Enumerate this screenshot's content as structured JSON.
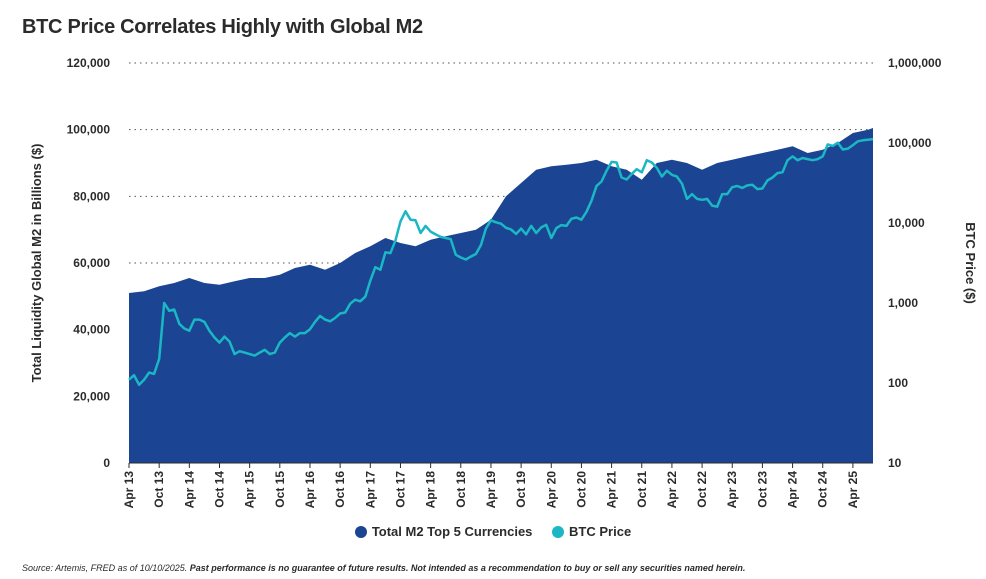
{
  "title": "BTC Price Correlates Highly with Global M2",
  "source": {
    "prefix": "Source: Artemis, FRED as of 10/10/2025.",
    "disclaimer": "Past performance is no guarantee of future results. Not intended as a recommendation to buy or sell any securities named herein."
  },
  "colors": {
    "m2": "#1b4592",
    "btc": "#1bb7c4",
    "grid": "#555555"
  },
  "chart_data": {
    "type": "area",
    "left_axis": {
      "label": "Total Liquidity Global M2 in Billions ($)",
      "range": [
        0,
        120000
      ],
      "ticks": [
        "0",
        "20,000",
        "40,000",
        "60,000",
        "80,000",
        "100,000",
        "120,000"
      ],
      "tick_values": [
        0,
        20000,
        40000,
        60000,
        80000,
        100000,
        120000
      ]
    },
    "right_axis": {
      "label": "BTC Price ($)",
      "scale": "log",
      "range": [
        10,
        1000000
      ],
      "ticks": [
        "10",
        "100",
        "1,000",
        "10,000",
        "100,000",
        "1,000,000"
      ],
      "tick_values": [
        10,
        100,
        1000,
        10000,
        100000,
        1000000
      ]
    },
    "x_ticks": [
      "Apr 13",
      "Oct 13",
      "Apr 14",
      "Oct 14",
      "Apr 15",
      "Oct 15",
      "Apr 16",
      "Oct 16",
      "Apr 17",
      "Oct 17",
      "Apr 18",
      "Oct 18",
      "Apr 19",
      "Oct 19",
      "Apr 20",
      "Oct 20",
      "Apr 21",
      "Oct 21",
      "Apr 22",
      "Oct 22",
      "Apr 23",
      "Oct 23",
      "Apr 24",
      "Oct 24",
      "Apr 25"
    ],
    "legend_position": "bottom",
    "grid": "horizontal dotted",
    "series": [
      {
        "name": "Total M2 Top 5 Currencies",
        "kind": "area",
        "axis": "left",
        "x_months_from_apr13": [
          0,
          3,
          6,
          9,
          12,
          15,
          18,
          21,
          24,
          27,
          30,
          33,
          36,
          39,
          42,
          45,
          48,
          51,
          54,
          57,
          60,
          63,
          66,
          69,
          72,
          75,
          78,
          81,
          84,
          87,
          90,
          93,
          96,
          99,
          102,
          105,
          108,
          111,
          114,
          117,
          120,
          123,
          126,
          129,
          132,
          135,
          138,
          141,
          144,
          147,
          148
        ],
        "values": [
          51000,
          51500,
          53000,
          54000,
          55500,
          54000,
          53500,
          54500,
          55500,
          55500,
          56500,
          58500,
          59500,
          58000,
          60000,
          63000,
          65000,
          67500,
          66000,
          65000,
          67000,
          68000,
          69000,
          70000,
          73000,
          80000,
          84000,
          88000,
          89000,
          89500,
          90000,
          91000,
          89000,
          88000,
          85000,
          90000,
          91000,
          90000,
          88000,
          90000,
          91000,
          92000,
          93000,
          94000,
          95000,
          93000,
          94000,
          96000,
          99000,
          100000,
          100500
        ]
      },
      {
        "name": "BTC Price",
        "kind": "line",
        "axis": "right",
        "x_months_from_apr13": [
          0,
          1,
          2,
          3,
          4,
          5,
          6,
          7,
          8,
          9,
          10,
          11,
          12,
          13,
          14,
          15,
          16,
          17,
          18,
          19,
          20,
          21,
          22,
          23,
          24,
          25,
          26,
          27,
          28,
          29,
          30,
          31,
          32,
          33,
          34,
          35,
          36,
          37,
          38,
          39,
          40,
          41,
          42,
          43,
          44,
          45,
          46,
          47,
          48,
          49,
          50,
          51,
          52,
          53,
          54,
          55,
          56,
          57,
          58,
          59,
          60,
          61,
          62,
          63,
          64,
          65,
          66,
          67,
          68,
          69,
          70,
          71,
          72,
          73,
          74,
          75,
          76,
          77,
          78,
          79,
          80,
          81,
          82,
          83,
          84,
          85,
          86,
          87,
          88,
          89,
          90,
          91,
          92,
          93,
          94,
          95,
          96,
          97,
          98,
          99,
          100,
          101,
          102,
          103,
          104,
          105,
          106,
          107,
          108,
          109,
          110,
          111,
          112,
          113,
          114,
          115,
          116,
          117,
          118,
          119,
          120,
          121,
          122,
          123,
          124,
          125,
          126,
          127,
          128,
          129,
          130,
          131,
          132,
          133,
          134,
          135,
          136,
          137,
          138,
          139,
          140,
          141,
          142,
          143,
          144,
          145,
          146,
          147,
          148
        ],
        "values": [
          110,
          125,
          95,
          110,
          135,
          130,
          200,
          1000,
          800,
          830,
          550,
          480,
          450,
          620,
          620,
          580,
          450,
          370,
          320,
          380,
          330,
          230,
          250,
          240,
          230,
          220,
          240,
          260,
          230,
          240,
          320,
          370,
          420,
          380,
          420,
          420,
          470,
          580,
          690,
          620,
          590,
          650,
          740,
          760,
          980,
          1100,
          1050,
          1200,
          1900,
          2800,
          2600,
          4300,
          4200,
          6000,
          10500,
          14000,
          11000,
          10800,
          7500,
          9200,
          7800,
          7200,
          6700,
          6500,
          6300,
          4000,
          3700,
          3500,
          3800,
          4100,
          5300,
          8500,
          10800,
          10200,
          9800,
          8700,
          8300,
          7300,
          8500,
          7200,
          9200,
          7500,
          8800,
          9500,
          6500,
          8600,
          9400,
          9200,
          11300,
          11700,
          11000,
          13800,
          19000,
          29000,
          33000,
          45000,
          58000,
          57000,
          37000,
          35000,
          41000,
          47000,
          43000,
          61000,
          57000,
          49000,
          38000,
          45000,
          40000,
          38000,
          31000,
          20000,
          23000,
          20000,
          19500,
          20000,
          16500,
          16000,
          23000,
          23000,
          28000,
          29000,
          27500,
          29500,
          30000,
          26500,
          27000,
          34000,
          37000,
          42000,
          43000,
          61000,
          68000,
          61000,
          65000,
          63000,
          61000,
          63000,
          68000,
          96000,
          92000,
          101000,
          83000,
          85000,
          94000,
          105000,
          108000,
          110000,
          112000,
          116000,
          112000
        ]
      }
    ]
  }
}
